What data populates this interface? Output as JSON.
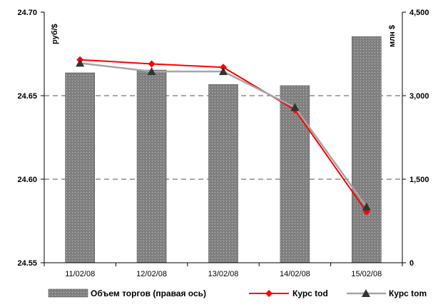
{
  "chart_data": {
    "type": "bar",
    "categories": [
      "11/02/08",
      "12/02/08",
      "13/02/08",
      "14/02/08",
      "15/02/08"
    ],
    "series": [
      {
        "name": "Объем торгов (правая ось)",
        "kind": "bar",
        "axis": "right",
        "values": [
          3410,
          3460,
          3200,
          3180,
          4060
        ],
        "color": "#808080"
      },
      {
        "name": "Курс tod",
        "kind": "line",
        "marker": "diamond",
        "axis": "left",
        "values": [
          24.6715,
          24.669,
          24.667,
          24.6415,
          24.5805
        ],
        "color": "#ff0000"
      },
      {
        "name": "Курс tom",
        "kind": "line",
        "marker": "triangle",
        "axis": "left",
        "values": [
          24.6695,
          24.6645,
          24.6645,
          24.643,
          24.5835
        ],
        "color": "#a6a6a6",
        "marker_color": "#333333"
      }
    ],
    "y_left": {
      "label": "руб/$",
      "ticks": [
        "24.55",
        "24.60",
        "24.65",
        "24.70"
      ],
      "range": [
        24.55,
        24.7
      ]
    },
    "y_right": {
      "label": "млн $",
      "ticks": [
        "0",
        "1,500",
        "3,000",
        "4,500"
      ],
      "range": [
        0,
        4500
      ]
    },
    "grid": "horizontal dashed",
    "legend": "bottom"
  }
}
